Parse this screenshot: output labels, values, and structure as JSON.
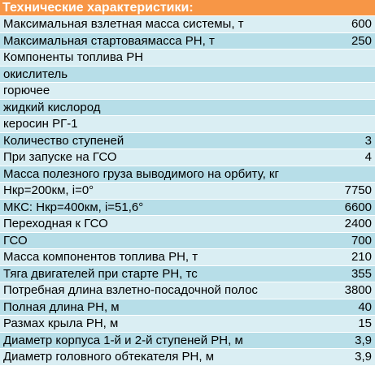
{
  "title": "Технические характеристики:",
  "rows": [
    {
      "label": "Максимальная взлетная масса системы, т",
      "value": "600"
    },
    {
      "label": "Максимальная стартоваямасса РН, т",
      "value": "250"
    },
    {
      "label": "Компоненты топлива РН",
      "value": ""
    },
    {
      "label": "окислитель",
      "value": ""
    },
    {
      "label": "горючее",
      "value": ""
    },
    {
      "label": "жидкий кислород",
      "value": ""
    },
    {
      "label": "керосин РГ-1",
      "value": ""
    },
    {
      "label": "Количество ступеней",
      "value": "3"
    },
    {
      "label": "При запуске на ГСО",
      "value": "4"
    },
    {
      "label": "Масса полезного груза выводимого на орбиту, кг",
      "value": ""
    },
    {
      "label": "Нкр=200км,  i=0°",
      "value": "7750"
    },
    {
      "label": "МКС: Нкр=400км, i=51,6°",
      "value": "6600"
    },
    {
      "label": "Переходная к ГСО",
      "value": "2400"
    },
    {
      "label": "ГСО",
      "value": "700"
    },
    {
      "label": "Масса компонентов топлива РН, т",
      "value": "210"
    },
    {
      "label": "Тяга двигателей при старте РН, тс",
      "value": "355"
    },
    {
      "label": "Потребная длина взлетно-посадочной полос",
      "value": "3800"
    },
    {
      "label": "Полная длина РН, м",
      "value": "40"
    },
    {
      "label": "Размах крыла РН, м",
      "value": "15"
    },
    {
      "label": "Диаметр корпуса 1-й и 2-й ступеней РН, м",
      "value": "3,9"
    },
    {
      "label": "Диаметр головного обтекателя РН, м",
      "value": "3,9"
    }
  ]
}
